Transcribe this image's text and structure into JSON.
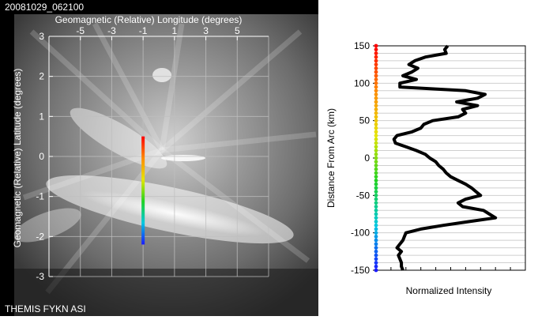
{
  "asi": {
    "timestamp": "20081029_062100",
    "caption": "THEMIS FYKN ASI"
  },
  "chart_data": [
    {
      "type": "scatter",
      "title": "",
      "xlabel": "Geomagnetic (Relative) Longitude (degrees)",
      "ylabel": "Geomagnetic (Relative) Latitude (degrees)",
      "xlim": [
        -7,
        7
      ],
      "ylim": [
        -3,
        3
      ],
      "x_ticks": [
        "-5",
        "-3",
        "-1",
        "1",
        "3",
        "5"
      ],
      "y_ticks": [
        "3",
        "2",
        "1",
        "0",
        "-1",
        "-2",
        "-3"
      ],
      "grid": true,
      "series": [
        {
          "x": [
            -1,
            -1
          ],
          "y": [
            0.5,
            -2.2
          ]
        }
      ]
    },
    {
      "type": "line",
      "title": "",
      "xlabel": "Normalized Intensity",
      "ylabel": "Distance From Arc (km)",
      "ylim": [
        -150,
        150
      ],
      "y_ticks": [
        "150",
        "100",
        "50",
        "0",
        "-50",
        "-100",
        "-150"
      ],
      "grid": true,
      "series": [
        {
          "y": [
            150,
            145,
            140,
            135,
            130,
            125,
            120,
            115,
            110,
            105,
            100,
            95,
            90,
            85,
            80,
            75,
            70,
            65,
            60,
            55,
            50,
            45,
            40,
            35,
            30,
            25,
            20,
            15,
            10,
            5,
            0,
            -5,
            -10,
            -15,
            -20,
            -25,
            -30,
            -35,
            -40,
            -45,
            -50,
            -55,
            -60,
            -65,
            -70,
            -75,
            -80,
            -85,
            -90,
            -95,
            -100,
            -105,
            -110,
            -115,
            -120,
            -125,
            -130,
            -135,
            -140,
            -145,
            -150
          ],
          "x": [
            0.48,
            0.46,
            0.47,
            0.33,
            0.26,
            0.22,
            0.28,
            0.24,
            0.18,
            0.27,
            0.16,
            0.16,
            0.6,
            0.73,
            0.68,
            0.54,
            0.68,
            0.58,
            0.6,
            0.55,
            0.38,
            0.32,
            0.3,
            0.24,
            0.14,
            0.12,
            0.13,
            0.2,
            0.27,
            0.33,
            0.36,
            0.4,
            0.42,
            0.45,
            0.47,
            0.5,
            0.55,
            0.6,
            0.64,
            0.67,
            0.7,
            0.6,
            0.55,
            0.58,
            0.72,
            0.76,
            0.8,
            0.62,
            0.45,
            0.3,
            0.2,
            0.19,
            0.18,
            0.16,
            0.14,
            0.17,
            0.15,
            0.16,
            0.17,
            0.17,
            0.18
          ]
        }
      ]
    }
  ]
}
